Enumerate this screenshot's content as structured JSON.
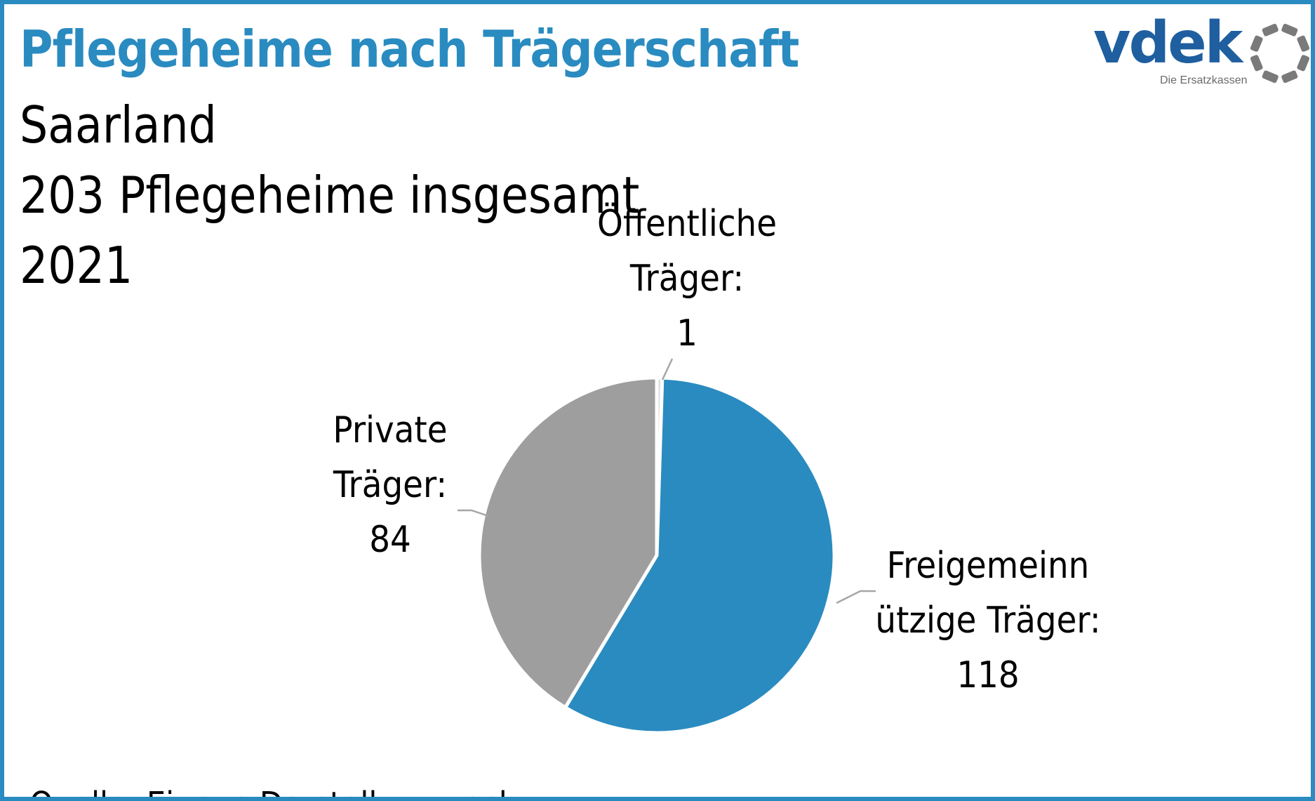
{
  "header": {
    "title": "Pflegeheime nach Trägerschaft",
    "region": "Saarland",
    "total": "203 Pflegeheime insgesamt",
    "year": "2021"
  },
  "logo": {
    "word": "vdek",
    "tagline": "Die Ersatzkassen",
    "word_color": "#1f5fa0",
    "ring_color": "#7a7a7a"
  },
  "colors": {
    "frame": "#2a8bc0",
    "title": "#2a8bc0"
  },
  "chart_data": {
    "type": "pie",
    "slices": [
      {
        "label_lines": [
          "Öffentliche",
          "Träger:",
          "1"
        ],
        "name": "Öffentliche Träger",
        "value": 1,
        "color": "#dcdcdc"
      },
      {
        "label_lines": [
          "Freigemeinn",
          "ützige Träger:",
          "118"
        ],
        "name": "Freigemeinnützige Träger",
        "value": 118,
        "color": "#2a8bc0"
      },
      {
        "label_lines": [
          "Private",
          "Träger:",
          "84"
        ],
        "name": "Private Träger",
        "value": 84,
        "color": "#9e9e9e"
      }
    ]
  },
  "footer": {
    "source": "Quelle: Eigene Darstellung nach"
  }
}
